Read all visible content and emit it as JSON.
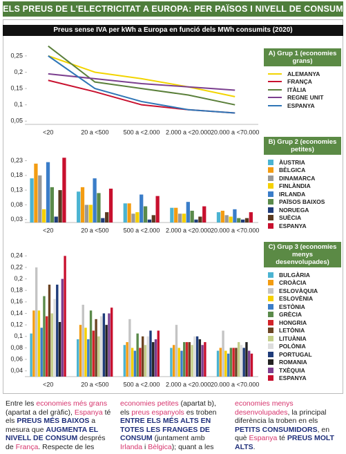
{
  "header": {
    "title": "ELS PREUS DE L'ELECTRICITAT A EUROPA: PER PAÏSOS I NIVELL DE CONSUM",
    "subtitle": "Preus sense IVA per kWh a Europa en funció dels MWh consumits (2020)"
  },
  "chart_data": [
    {
      "type": "line",
      "title": "A) Grup 1 (economies grans)",
      "categories": [
        "<20",
        "20 a <500",
        "500 a <2.000",
        "2.000 a <20.000",
        "20.000 a <70.000"
      ],
      "ylim": [
        0.04,
        0.29
      ],
      "yticks": [
        {
          "value": 0.05,
          "label": "0,05"
        },
        {
          "value": 0.1,
          "label": "0,1"
        },
        {
          "value": 0.15,
          "label": "0,15"
        },
        {
          "value": 0.2,
          "label": "0,2"
        },
        {
          "value": 0.25,
          "label": "0,25"
        }
      ],
      "series": [
        {
          "name": "Alemanya",
          "color": "#f2d400",
          "values": [
            0.25,
            0.2,
            0.18,
            0.155,
            0.125
          ]
        },
        {
          "name": "França",
          "color": "#c8102e",
          "values": [
            0.175,
            0.14,
            0.1,
            0.085,
            0.075
          ]
        },
        {
          "name": "Itàlia",
          "color": "#5a7f3a",
          "values": [
            0.28,
            0.17,
            0.15,
            0.13,
            0.1
          ]
        },
        {
          "name": "Regne Unit",
          "color": "#7b3f8f",
          "values": [
            0.195,
            0.18,
            0.165,
            0.155,
            0.145
          ]
        },
        {
          "name": "Espanya",
          "color": "#2e75b6",
          "values": [
            0.25,
            0.15,
            0.11,
            0.085,
            0.075
          ]
        }
      ]
    },
    {
      "type": "bar",
      "title": "B) Grup 2 (economies petites)",
      "categories": [
        "<20",
        "20 a <500",
        "500 a <2.000",
        "2.000 a <20.000",
        "20.000 a <70.000"
      ],
      "ylim": [
        0.02,
        0.25
      ],
      "yticks": [
        {
          "value": 0.03,
          "label": "0,03"
        },
        {
          "value": 0.08,
          "label": "0,08"
        },
        {
          "value": 0.13,
          "label": "0,13"
        },
        {
          "value": 0.18,
          "label": "0,18"
        },
        {
          "value": 0.23,
          "label": "0,23"
        }
      ],
      "series": [
        {
          "name": "Àustria",
          "color": "#4bb3d1",
          "values": [
            0.17,
            0.125,
            0.085,
            0.07,
            0.055
          ]
        },
        {
          "name": "Bèlgica",
          "color": "#f39c12",
          "values": [
            0.22,
            0.14,
            0.085,
            0.07,
            0.06
          ]
        },
        {
          "name": "Dinamarca",
          "color": "#999999",
          "values": [
            0.18,
            0.08,
            0.05,
            0.05,
            0.045
          ]
        },
        {
          "name": "Finlàndia",
          "color": "#f5d000",
          "values": [
            0.065,
            0.08,
            0.055,
            0.05,
            0.04
          ]
        },
        {
          "name": "Irlanda",
          "color": "#3a7dc9",
          "values": [
            0.225,
            0.17,
            0.115,
            0.09,
            0.065
          ]
        },
        {
          "name": "Països Baixos",
          "color": "#5a8a4a",
          "values": [
            0.14,
            0.12,
            0.075,
            0.06,
            0.035
          ]
        },
        {
          "name": "Noruega",
          "color": "#1f3c7a",
          "values": [
            0.04,
            0.035,
            0.03,
            0.03,
            0.03
          ]
        },
        {
          "name": "Suècia",
          "color": "#5a3a20",
          "values": [
            0.13,
            0.055,
            0.045,
            0.04,
            0.035
          ]
        },
        {
          "name": "Espanya",
          "color": "#c8102e",
          "values": [
            0.24,
            0.135,
            0.11,
            0.075,
            0.055
          ]
        }
      ]
    },
    {
      "type": "bar",
      "title": "C) Grup 3 (economies menys desenvolupades)",
      "categories": [
        "<20",
        "20 a <500",
        "500 a <2.000",
        "2.000 a <20.000",
        "20.000 a <70.000"
      ],
      "ylim": [
        0.03,
        0.25
      ],
      "yticks": [
        {
          "value": 0.04,
          "label": "0,04"
        },
        {
          "value": 0.06,
          "label": "0,06"
        },
        {
          "value": 0.08,
          "label": "0,08"
        },
        {
          "value": 0.1,
          "label": "0,1"
        },
        {
          "value": 0.12,
          "label": "0,12"
        },
        {
          "value": 0.14,
          "label": "0,14"
        },
        {
          "value": 0.16,
          "label": "0,16"
        },
        {
          "value": 0.18,
          "label": "0,18"
        },
        {
          "value": 0.2,
          "label": "0,2"
        },
        {
          "value": 0.22,
          "label": "0,22"
        },
        {
          "value": 0.24,
          "label": "0,24"
        }
      ],
      "series": [
        {
          "name": "Bulgària",
          "color": "#4bb3d1",
          "values": [
            0.105,
            0.095,
            0.085,
            0.08,
            0.075
          ]
        },
        {
          "name": "Croàcia",
          "color": "#f39c12",
          "values": [
            0.145,
            0.12,
            0.09,
            0.085,
            0.08
          ]
        },
        {
          "name": "Eslovàquia",
          "color": "#c4c4c4",
          "values": [
            0.22,
            0.155,
            0.13,
            0.12,
            0.11
          ]
        },
        {
          "name": "Eslovènia",
          "color": "#f5d000",
          "values": [
            0.145,
            0.115,
            0.08,
            0.08,
            0.075
          ]
        },
        {
          "name": "Estònia",
          "color": "#3a7dc9",
          "values": [
            0.115,
            0.095,
            0.075,
            0.075,
            0.07
          ]
        },
        {
          "name": "Grècia",
          "color": "#5a8a4a",
          "values": [
            0.17,
            0.145,
            0.105,
            0.09,
            0.08
          ]
        },
        {
          "name": "Hongria",
          "color": "#d2232a",
          "values": [
            0.135,
            0.11,
            0.08,
            0.09,
            0.08
          ]
        },
        {
          "name": "Letònia",
          "color": "#6b4423",
          "values": [
            0.19,
            0.13,
            0.1,
            0.09,
            0.08
          ]
        },
        {
          "name": "Lituània",
          "color": "#c5d08a",
          "values": [
            0.14,
            0.1,
            0.085,
            0.085,
            0.09
          ]
        },
        {
          "name": "Polònia",
          "color": "#dddddd",
          "values": [
            0.165,
            0.135,
            0.1,
            0.1,
            0.085
          ]
        },
        {
          "name": "Portugal",
          "color": "#1f3c7a",
          "values": [
            0.19,
            0.14,
            0.11,
            0.1,
            0.08
          ]
        },
        {
          "name": "Romania",
          "color": "#222222",
          "values": [
            0.125,
            0.12,
            0.09,
            0.095,
            0.09
          ]
        },
        {
          "name": "Txèquia",
          "color": "#7b3f8f",
          "values": [
            0.2,
            0.14,
            0.095,
            0.085,
            0.075
          ]
        },
        {
          "name": "Espanya",
          "color": "#c8102e",
          "values": [
            0.24,
            0.15,
            0.11,
            0.09,
            0.07
          ]
        }
      ]
    }
  ],
  "body": {
    "segments": [
      {
        "text": "Entre les "
      },
      {
        "text": "economies més grans",
        "color": "#d6336c"
      },
      {
        "text": " (apartat "
      },
      {
        "text": "a"
      },
      {
        "text": " del gràfic), "
      },
      {
        "text": "Espanya",
        "color": "#d6336c"
      },
      {
        "text": " té els "
      },
      {
        "text": "PREUS MÉS BAIXOS",
        "color": "#1f2f7a",
        "bold": true
      },
      {
        "text": " a mesura que "
      },
      {
        "text": "AUGMENTA EL NIVELL DE CONSUM",
        "color": "#1f2f7a",
        "bold": true
      },
      {
        "text": " després de "
      },
      {
        "text": "França",
        "color": "#d6336c"
      },
      {
        "text": ". Respecte de les "
      },
      {
        "text": "economies petites",
        "color": "#d6336c"
      },
      {
        "text": " (apartat "
      },
      {
        "text": "b"
      },
      {
        "text": "), els "
      },
      {
        "text": "preus espanyols",
        "color": "#d6336c"
      },
      {
        "text": " es troben "
      },
      {
        "text": "ENTRE ELS MÉS ALTS EN TOTES LES FRANGES DE CONSUM",
        "color": "#1f2f7a",
        "bold": true
      },
      {
        "text": " (juntament amb "
      },
      {
        "text": "Irlanda",
        "color": "#d6336c"
      },
      {
        "text": " i "
      },
      {
        "text": "Bèlgica",
        "color": "#d6336c"
      },
      {
        "text": "); quant a les "
      },
      {
        "text": "economies menys desenvolupades",
        "color": "#d6336c"
      },
      {
        "text": ", la principal diferència la troben en els "
      },
      {
        "text": "PETITS CONSUMIDORS",
        "color": "#1f2f7a",
        "bold": true
      },
      {
        "text": ", en què "
      },
      {
        "text": "Espanya",
        "color": "#d6336c"
      },
      {
        "text": " té "
      },
      {
        "text": "PREUS MOLT ALTS",
        "color": "#1f2f7a",
        "bold": true
      },
      {
        "text": "."
      }
    ]
  }
}
